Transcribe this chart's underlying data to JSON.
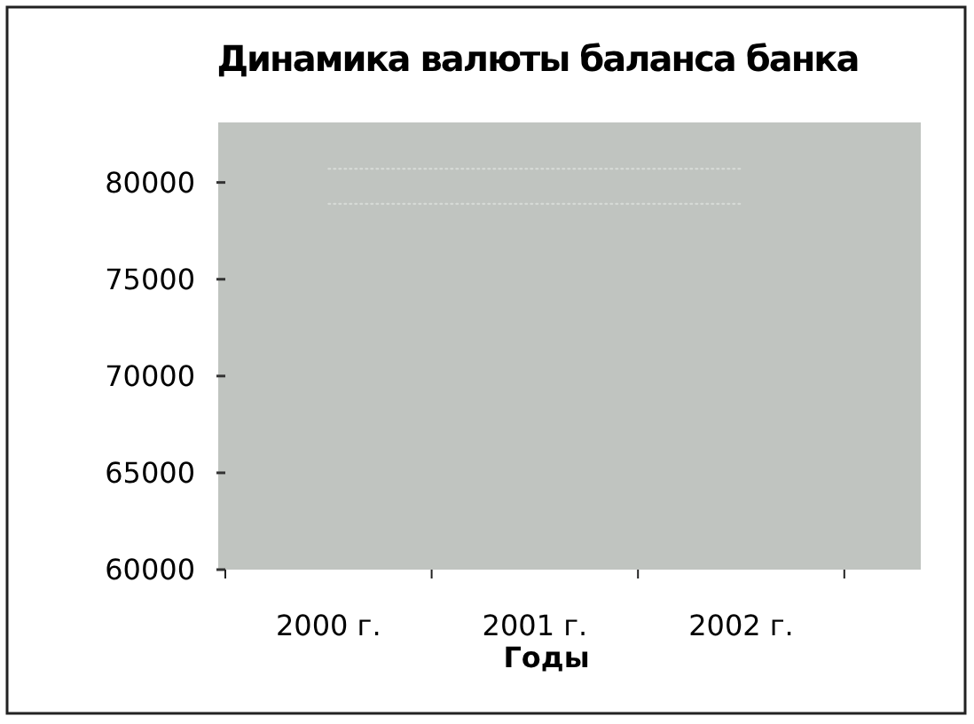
{
  "chart_data": {
    "type": "line",
    "title": "Динамика валюты баланса банка",
    "xlabel": "Годы",
    "categories": [
      "2000 г.",
      "2001 г.",
      "2002 г."
    ],
    "series": [
      {
        "color": "#d8dcd8",
        "values": [
          80700,
          80700,
          80700
        ]
      },
      {
        "color": "#d8dcd8",
        "values": [
          78900,
          78900,
          78900
        ]
      }
    ],
    "ylim": [
      60000,
      83100
    ],
    "yticks": [
      60000,
      65000,
      70000,
      75000,
      80000
    ],
    "line_style": "dotted",
    "marker": "none",
    "grid": false
  }
}
